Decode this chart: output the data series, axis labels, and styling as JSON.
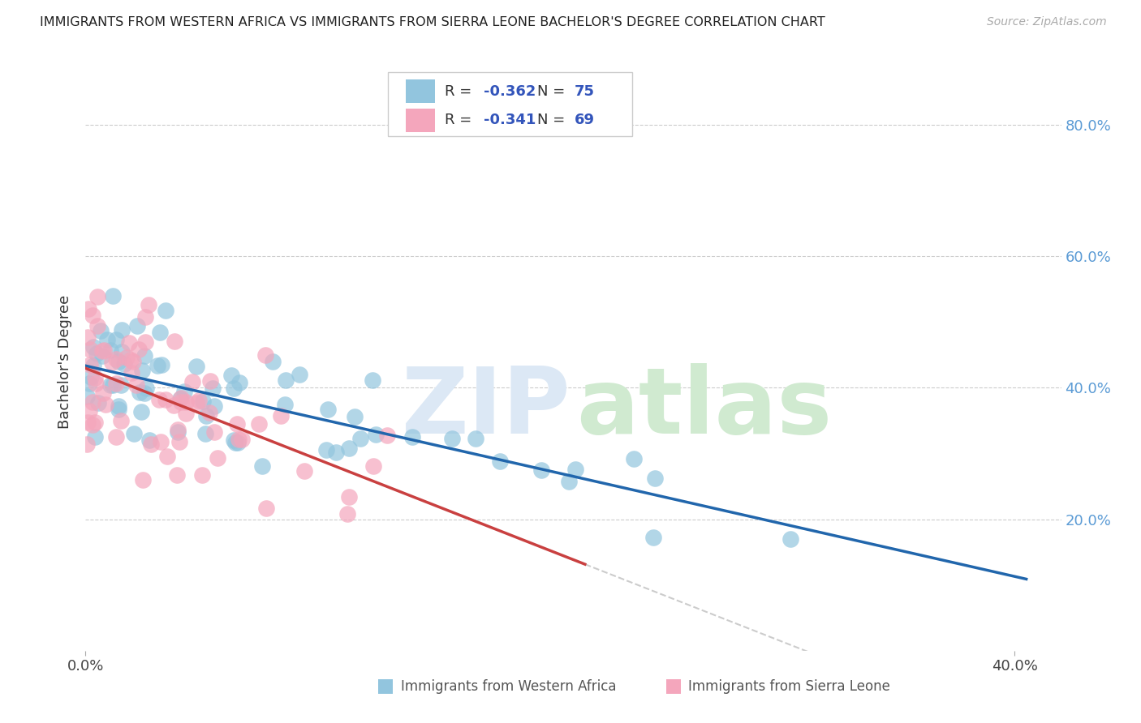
{
  "title": "IMMIGRANTS FROM WESTERN AFRICA VS IMMIGRANTS FROM SIERRA LEONE BACHELOR'S DEGREE CORRELATION CHART",
  "source": "Source: ZipAtlas.com",
  "ylabel": "Bachelor's Degree",
  "xlim": [
    0.0,
    0.42
  ],
  "ylim": [
    0.0,
    0.88
  ],
  "yticks": [
    0.2,
    0.4,
    0.6,
    0.8
  ],
  "ytick_labels": [
    "20.0%",
    "40.0%",
    "60.0%",
    "80.0%"
  ],
  "xtick_labels": [
    "0.0%",
    "40.0%"
  ],
  "xticks": [
    0.0,
    0.4
  ],
  "blue_R": -0.362,
  "blue_N": 75,
  "pink_R": -0.341,
  "pink_N": 69,
  "blue_color": "#92c5de",
  "pink_color": "#f4a6bc",
  "blue_line_color": "#2166ac",
  "pink_line_color": "#c94040",
  "pink_line_dashed_color": "#cccccc",
  "watermark_zip": "ZIP",
  "watermark_atlas": "atlas",
  "watermark_zip_color": "#dce8f5",
  "watermark_atlas_color": "#d0ead0",
  "legend_label1": "Immigrants from Western Africa",
  "legend_label2": "Immigrants from Sierra Leone",
  "blue_line_intercept": 0.405,
  "blue_line_slope": -0.55,
  "pink_line_intercept": 0.415,
  "pink_line_slope": -0.85,
  "pink_line_x_end": 0.215,
  "blue_line_x_end": 0.405
}
